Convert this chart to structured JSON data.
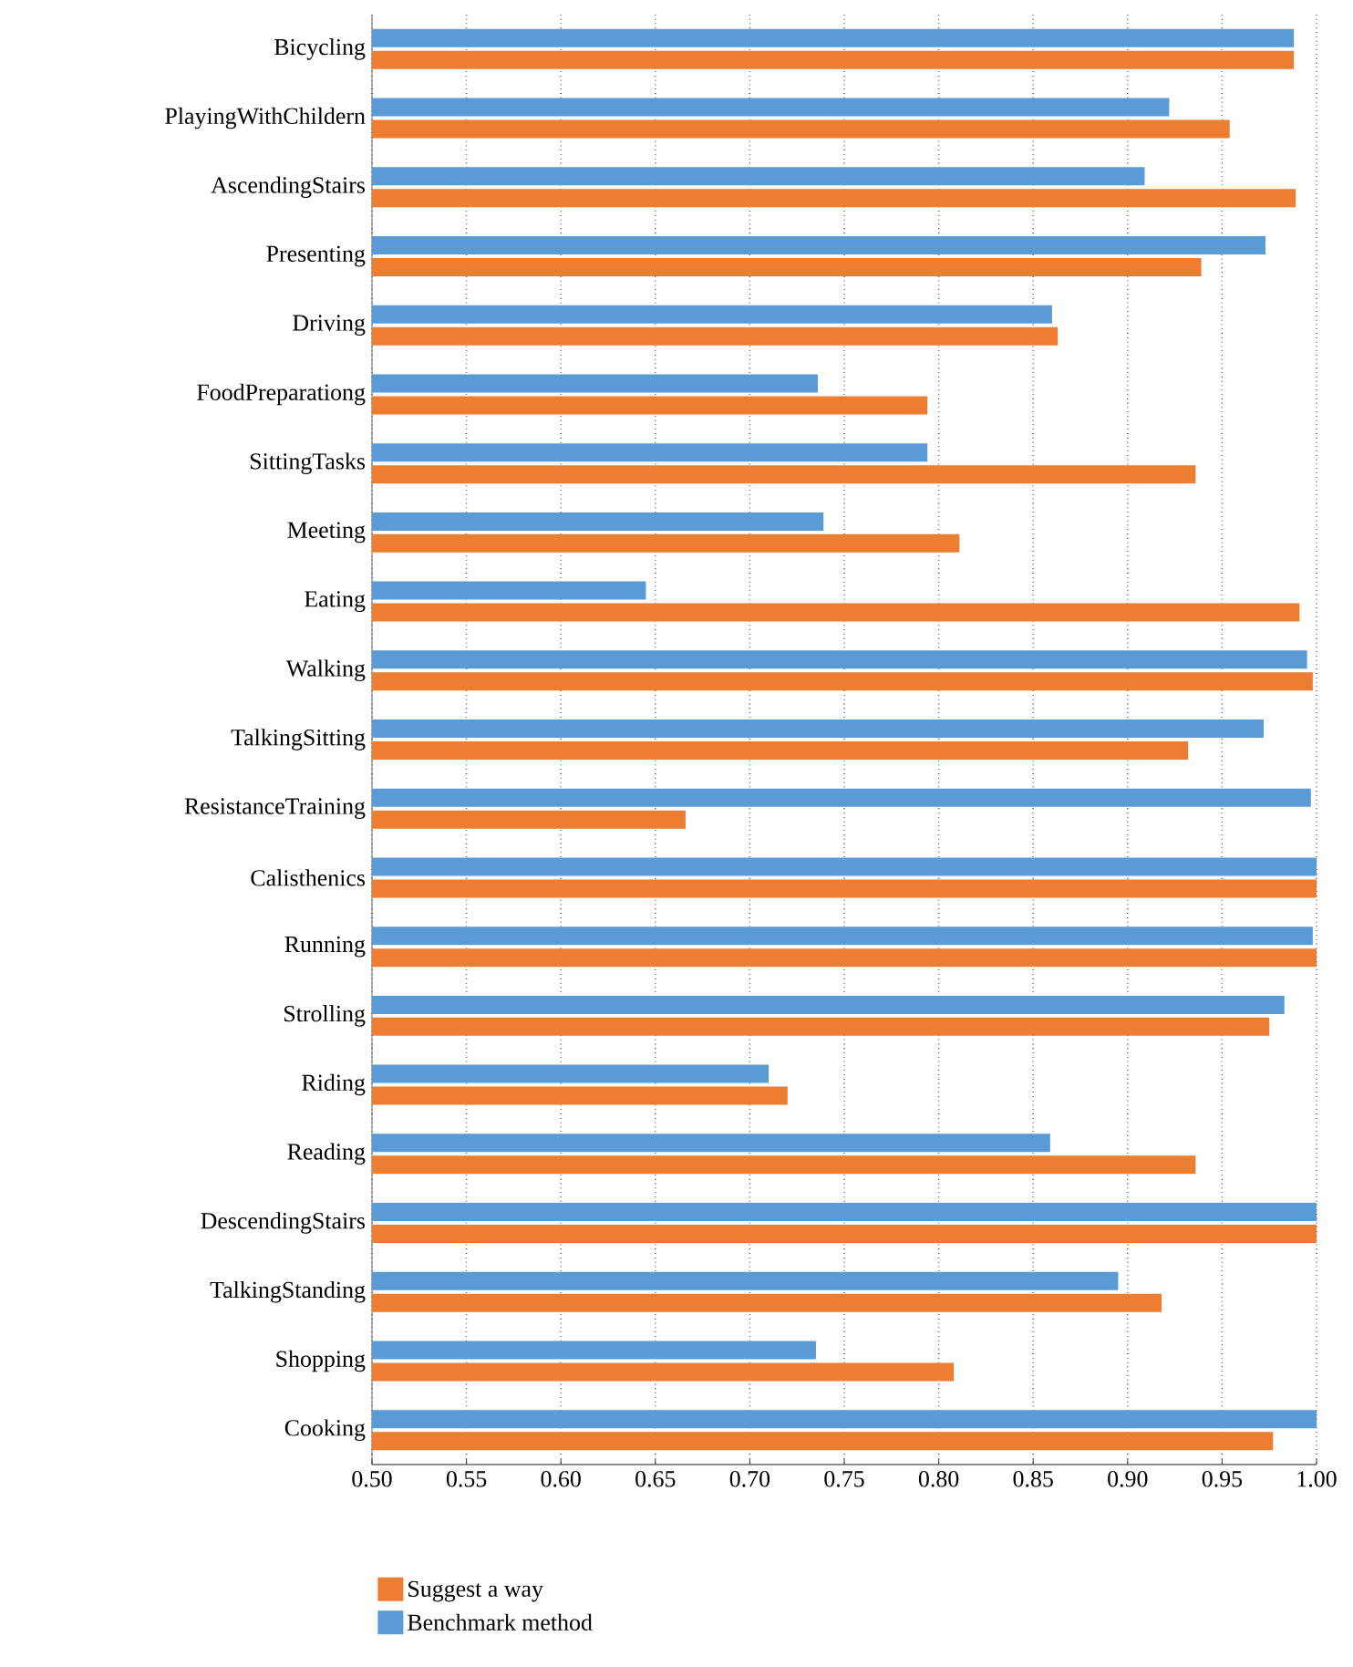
{
  "chart_data": {
    "type": "bar",
    "orientation": "horizontal",
    "categories": [
      "Bicycling",
      "PlayingWithChildern",
      "AscendingStairs",
      "Presenting",
      "Driving",
      "FoodPreparationg",
      "SittingTasks",
      "Meeting",
      "Eating",
      "Walking",
      "TalkingSitting",
      "ResistanceTraining",
      "Calisthenics",
      "Running",
      "Strolling",
      "Riding",
      "Reading",
      "DescendingStairs",
      "TalkingStanding",
      "Shopping",
      "Cooking"
    ],
    "series": [
      {
        "name": "Suggest a way",
        "color": "#ed7d31",
        "values": [
          0.988,
          0.954,
          0.989,
          0.939,
          0.863,
          0.794,
          0.936,
          0.811,
          0.991,
          0.998,
          0.932,
          0.666,
          1.0,
          1.0,
          0.975,
          0.72,
          0.936,
          1.0,
          0.918,
          0.808,
          0.977
        ]
      },
      {
        "name": "Benchmark method",
        "color": "#5b9bd5",
        "values": [
          0.988,
          0.922,
          0.909,
          0.973,
          0.86,
          0.736,
          0.794,
          0.739,
          0.645,
          0.995,
          0.972,
          0.997,
          1.0,
          0.998,
          0.983,
          0.71,
          0.859,
          1.0,
          0.895,
          0.735,
          1.0
        ]
      }
    ],
    "xlim": [
      0.5,
      1.0
    ],
    "xticks": [
      {
        "value": 0.5,
        "label": "0.50"
      },
      {
        "value": 0.55,
        "label": "0.55"
      },
      {
        "value": 0.6,
        "label": "0.60"
      },
      {
        "value": 0.65,
        "label": "0.65"
      },
      {
        "value": 0.7,
        "label": "0.70"
      },
      {
        "value": 0.75,
        "label": "0.75"
      },
      {
        "value": 0.8,
        "label": "0.80"
      },
      {
        "value": 0.85,
        "label": "0.85"
      },
      {
        "value": 0.9,
        "label": "0.90"
      },
      {
        "value": 0.95,
        "label": "0.95"
      },
      {
        "value": 1.0,
        "label": "1.00"
      }
    ],
    "grid": "x",
    "legend": "bottom"
  }
}
